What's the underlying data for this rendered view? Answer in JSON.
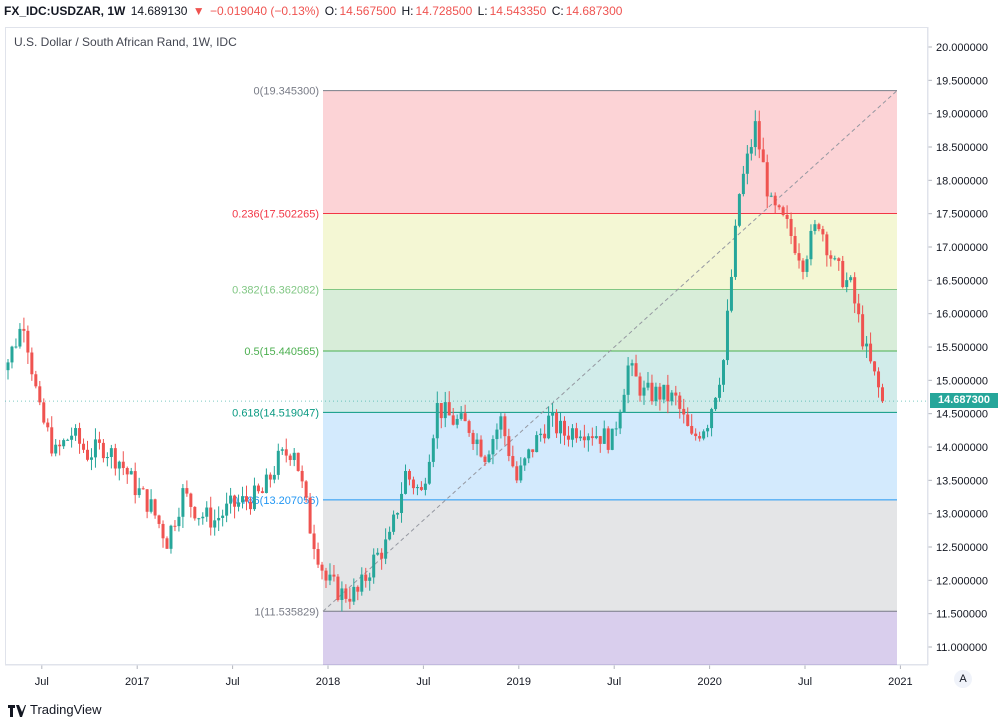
{
  "header": {
    "symbol": "FX_IDC:USDZAR, 1W",
    "last": "14.689130",
    "change": "−0.019040 (−0.13%)",
    "o_label": "O:",
    "o_value": "14.567500",
    "h_label": "H:",
    "h_value": "14.728500",
    "l_label": "L:",
    "l_value": "14.543350",
    "c_label": "C:",
    "c_value": "14.687300"
  },
  "chart_title": "U.S. Dollar / South African Rand, 1W, IDC",
  "price_tag": "14.687300",
  "auto_button": "A",
  "footer": {
    "brand": "TradingView"
  },
  "colors": {
    "up": "#26a69a",
    "down": "#ef5350",
    "accent": "#26a69a"
  },
  "chart_data": {
    "type": "candlestick",
    "title": "U.S. Dollar / South African Rand, 1W, IDC",
    "ylim": [
      10.8,
      20.3
    ],
    "yticks": [
      "20.000000",
      "19.500000",
      "19.000000",
      "18.500000",
      "18.000000",
      "17.500000",
      "17.000000",
      "16.500000",
      "16.000000",
      "15.500000",
      "15.000000",
      "14.500000",
      "14.000000",
      "13.500000",
      "13.000000",
      "12.500000",
      "12.000000",
      "11.500000",
      "11.000000"
    ],
    "xticks": [
      "Jul",
      "2017",
      "Jul",
      "2018",
      "Jul",
      "2019",
      "Jul",
      "2020",
      "Jul",
      "2021"
    ],
    "fibonacci": [
      {
        "label": "0(19.345300)",
        "level": 19.3453,
        "color": "#787b86"
      },
      {
        "label": "0.236(17.502265)",
        "level": 17.502265,
        "color": "#f23645"
      },
      {
        "label": "0.382(16.362082)",
        "level": 16.362082,
        "color": "#81c784"
      },
      {
        "label": "0.5(15.440565)",
        "level": 15.440565,
        "color": "#4caf50"
      },
      {
        "label": "0.618(14.519047)",
        "level": 14.519047,
        "color": "#089981"
      },
      {
        "label": "0.786(13.207056)",
        "level": 13.207056,
        "color": "#2196f3"
      },
      {
        "label": "1(11.535829)",
        "level": 11.535829,
        "color": "#787b86"
      }
    ],
    "close_path": [
      [
        "2016-05",
        15.3
      ],
      [
        "2016-06",
        15.9
      ],
      [
        "2016-07",
        14.5
      ],
      [
        "2016-08",
        13.9
      ],
      [
        "2016-09",
        14.2
      ],
      [
        "2016-10",
        13.9
      ],
      [
        "2016-11",
        14.0
      ],
      [
        "2016-12",
        13.8
      ],
      [
        "2017-01",
        13.4
      ],
      [
        "2017-02",
        13.1
      ],
      [
        "2017-03",
        12.6
      ],
      [
        "2017-04",
        13.3
      ],
      [
        "2017-05",
        13.0
      ],
      [
        "2017-06",
        12.9
      ],
      [
        "2017-07",
        13.1
      ],
      [
        "2017-08",
        13.2
      ],
      [
        "2017-09",
        13.3
      ],
      [
        "2017-10",
        13.8
      ],
      [
        "2017-11",
        14.0
      ],
      [
        "2017-12",
        12.8
      ],
      [
        "2018-01",
        12.0
      ],
      [
        "2018-02",
        11.8
      ],
      [
        "2018-03",
        11.8
      ],
      [
        "2018-04",
        12.3
      ],
      [
        "2018-05",
        12.6
      ],
      [
        "2018-06",
        13.6
      ],
      [
        "2018-07",
        13.3
      ],
      [
        "2018-08",
        14.6
      ],
      [
        "2018-09",
        14.4
      ],
      [
        "2018-10",
        14.3
      ],
      [
        "2018-11",
        13.9
      ],
      [
        "2018-12",
        14.4
      ],
      [
        "2019-01",
        13.5
      ],
      [
        "2019-02",
        14.0
      ],
      [
        "2019-03",
        14.4
      ],
      [
        "2019-04",
        14.2
      ],
      [
        "2019-05",
        14.3
      ],
      [
        "2019-06",
        14.2
      ],
      [
        "2019-07",
        14.1
      ],
      [
        "2019-08",
        15.2
      ],
      [
        "2019-09",
        14.8
      ],
      [
        "2019-10",
        14.8
      ],
      [
        "2019-11",
        14.7
      ],
      [
        "2019-12",
        14.1
      ],
      [
        "2020-01",
        14.4
      ],
      [
        "2020-02",
        15.3
      ],
      [
        "2020-03",
        17.8
      ],
      [
        "2020-04",
        18.8
      ],
      [
        "2020-05",
        17.6
      ],
      [
        "2020-06",
        17.3
      ],
      [
        "2020-07",
        16.8
      ],
      [
        "2020-08",
        17.4
      ],
      [
        "2020-09",
        16.7
      ],
      [
        "2020-10",
        16.4
      ],
      [
        "2020-11",
        15.4
      ],
      [
        "2020-12",
        14.69
      ]
    ]
  }
}
